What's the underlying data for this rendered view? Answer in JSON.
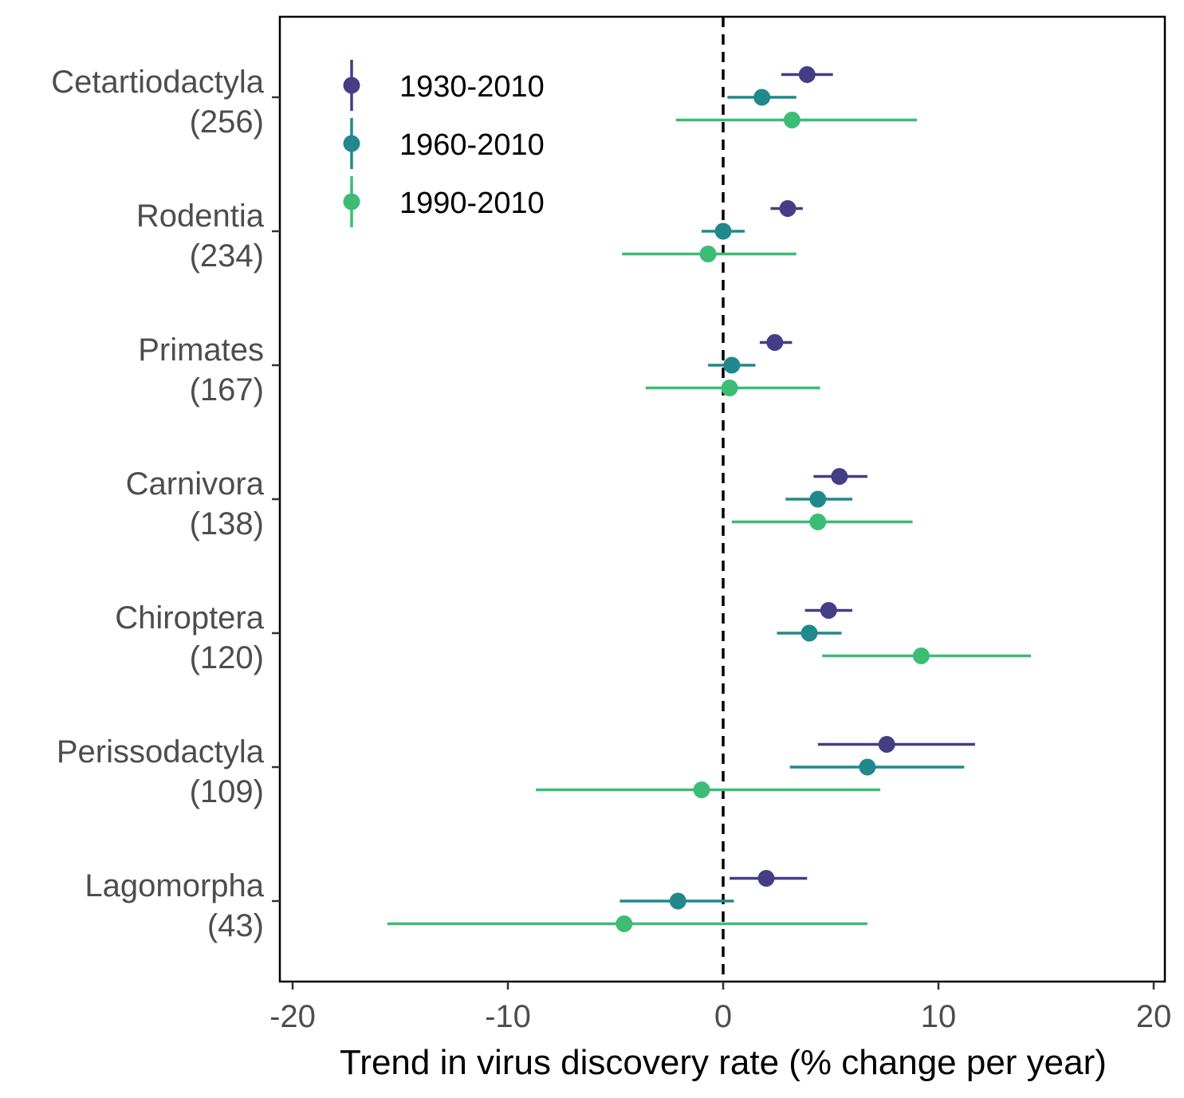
{
  "chart_data": {
    "type": "scatter",
    "subtype": "forest-plot-with-confidence-intervals",
    "xlabel": "Trend in virus discovery rate (% change per year)",
    "ylabel": "",
    "xlim": [
      -20.5,
      20.5
    ],
    "xticks": [
      -20,
      -10,
      0,
      10,
      20
    ],
    "xtick_labels": [
      "-20",
      "-10",
      "0",
      "10",
      "20"
    ],
    "reference_line": {
      "x": 0,
      "style": "dashed"
    },
    "legend_position": "top-left",
    "categories": [
      {
        "name": "Cetartiodactyla",
        "count": "(256)"
      },
      {
        "name": "Rodentia",
        "count": "(234)"
      },
      {
        "name": "Primates",
        "count": "(167)"
      },
      {
        "name": "Carnivora",
        "count": "(138)"
      },
      {
        "name": "Chiroptera",
        "count": "(120)"
      },
      {
        "name": "Perissodactyla",
        "count": "(109)"
      },
      {
        "name": "Lagomorpha",
        "count": "(43)"
      }
    ],
    "series": [
      {
        "name": "1930-2010",
        "color": "#433e85",
        "points": [
          {
            "est": 3.9,
            "lo": 2.7,
            "hi": 5.1
          },
          {
            "est": 3.0,
            "lo": 2.2,
            "hi": 3.7
          },
          {
            "est": 2.4,
            "lo": 1.7,
            "hi": 3.2
          },
          {
            "est": 5.4,
            "lo": 4.2,
            "hi": 6.7
          },
          {
            "est": 4.9,
            "lo": 3.8,
            "hi": 6.0
          },
          {
            "est": 7.6,
            "lo": 4.4,
            "hi": 11.7
          },
          {
            "est": 2.0,
            "lo": 0.3,
            "hi": 3.9
          }
        ]
      },
      {
        "name": "1960-2010",
        "color": "#21888c",
        "points": [
          {
            "est": 1.8,
            "lo": 0.2,
            "hi": 3.4
          },
          {
            "est": 0.0,
            "lo": -1.0,
            "hi": 1.0
          },
          {
            "est": 0.4,
            "lo": -0.7,
            "hi": 1.5
          },
          {
            "est": 4.4,
            "lo": 2.9,
            "hi": 6.0
          },
          {
            "est": 4.0,
            "lo": 2.5,
            "hi": 5.5
          },
          {
            "est": 6.7,
            "lo": 3.1,
            "hi": 11.2
          },
          {
            "est": -2.1,
            "lo": -4.8,
            "hi": 0.5
          }
        ]
      },
      {
        "name": "1990-2010",
        "color": "#3cbc75",
        "points": [
          {
            "est": 3.2,
            "lo": -2.2,
            "hi": 9.0
          },
          {
            "est": -0.7,
            "lo": -4.7,
            "hi": 3.4
          },
          {
            "est": 0.3,
            "lo": -3.6,
            "hi": 4.5
          },
          {
            "est": 4.4,
            "lo": 0.4,
            "hi": 8.8
          },
          {
            "est": 9.2,
            "lo": 4.6,
            "hi": 14.3
          },
          {
            "est": -1.0,
            "lo": -8.7,
            "hi": 7.3
          },
          {
            "est": -4.6,
            "lo": -15.6,
            "hi": 6.7
          }
        ]
      }
    ]
  }
}
